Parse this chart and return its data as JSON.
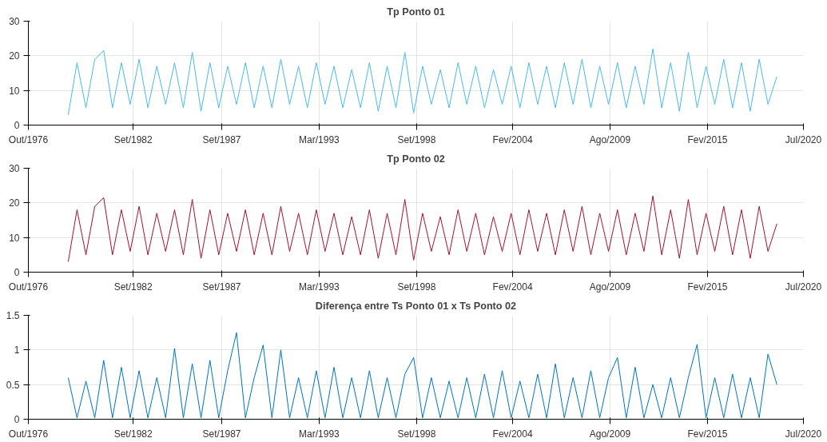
{
  "chart_data": [
    {
      "type": "line",
      "title": "Tp Ponto 01",
      "x": [
        "1979-01",
        "1979-07",
        "1980-01",
        "1980-07",
        "1981-01",
        "1981-07",
        "1982-01",
        "1982-07",
        "1983-01",
        "1983-07",
        "1984-01",
        "1984-07",
        "1985-01",
        "1985-07",
        "1986-01",
        "1986-07",
        "1987-01",
        "1987-07",
        "1988-01",
        "1988-07",
        "1989-01",
        "1989-07",
        "1990-01",
        "1990-07",
        "1991-01",
        "1991-07",
        "1992-01",
        "1992-07",
        "1993-01",
        "1993-07",
        "1994-01",
        "1994-07",
        "1995-01",
        "1995-07",
        "1996-01",
        "1996-07",
        "1997-01",
        "1997-07",
        "1998-01",
        "1998-07",
        "1999-01",
        "1999-07",
        "2000-01",
        "2000-07",
        "2001-01",
        "2001-07",
        "2002-01",
        "2002-07",
        "2003-01",
        "2003-07",
        "2004-01",
        "2004-07",
        "2005-01",
        "2005-07",
        "2006-01",
        "2006-07",
        "2007-01",
        "2007-07",
        "2008-01",
        "2008-07",
        "2009-01",
        "2009-07",
        "2010-01",
        "2010-07",
        "2011-01",
        "2011-07",
        "2012-01",
        "2012-07",
        "2013-01",
        "2013-07",
        "2014-01",
        "2014-07",
        "2015-01",
        "2015-07",
        "2016-01",
        "2016-07",
        "2017-01",
        "2017-07",
        "2018-01",
        "2018-07",
        "2019-01"
      ],
      "series": [
        {
          "color": "#4db8e8",
          "values": [
            3,
            18,
            5,
            19,
            21.5,
            5,
            18,
            6,
            19,
            5,
            17,
            6,
            18,
            5,
            21,
            4,
            18,
            5,
            17,
            6,
            18,
            5,
            17,
            5,
            19,
            6,
            17,
            5,
            18,
            6,
            17,
            5,
            16,
            5,
            18,
            4,
            17,
            5,
            21,
            3.5,
            17,
            6,
            16,
            5,
            18,
            6,
            17,
            5,
            16,
            6,
            17,
            5,
            18,
            6,
            17,
            5,
            18,
            6,
            19,
            5,
            17,
            6,
            18,
            5,
            17,
            6,
            22,
            5,
            18,
            4,
            21,
            5,
            17,
            6,
            19,
            5,
            18,
            4,
            19,
            6,
            14
          ]
        }
      ],
      "xlim": [
        "1976-10",
        "2020-07"
      ],
      "ylim": [
        0,
        30
      ],
      "yticks": [
        0,
        10,
        20,
        30
      ],
      "xticks": [
        {
          "value": "1976-10",
          "label": "Out/1976"
        },
        {
          "value": "1982-09",
          "label": "Set/1982"
        },
        {
          "value": "1987-09",
          "label": "Set/1987"
        },
        {
          "value": "1993-03",
          "label": "Mar/1993"
        },
        {
          "value": "1998-09",
          "label": "Set/1998"
        },
        {
          "value": "2004-02",
          "label": "Fev/2004"
        },
        {
          "value": "2009-08",
          "label": "Ago/2009"
        },
        {
          "value": "2015-02",
          "label": "Fev/2015"
        },
        {
          "value": "2020-07",
          "label": "Jul/2020"
        }
      ],
      "grid": true
    },
    {
      "type": "line",
      "title": "Tp Ponto 02",
      "x": [
        "1979-01",
        "1979-07",
        "1980-01",
        "1980-07",
        "1981-01",
        "1981-07",
        "1982-01",
        "1982-07",
        "1983-01",
        "1983-07",
        "1984-01",
        "1984-07",
        "1985-01",
        "1985-07",
        "1986-01",
        "1986-07",
        "1987-01",
        "1987-07",
        "1988-01",
        "1988-07",
        "1989-01",
        "1989-07",
        "1990-01",
        "1990-07",
        "1991-01",
        "1991-07",
        "1992-01",
        "1992-07",
        "1993-01",
        "1993-07",
        "1994-01",
        "1994-07",
        "1995-01",
        "1995-07",
        "1996-01",
        "1996-07",
        "1997-01",
        "1997-07",
        "1998-01",
        "1998-07",
        "1999-01",
        "1999-07",
        "2000-01",
        "2000-07",
        "2001-01",
        "2001-07",
        "2002-01",
        "2002-07",
        "2003-01",
        "2003-07",
        "2004-01",
        "2004-07",
        "2005-01",
        "2005-07",
        "2006-01",
        "2006-07",
        "2007-01",
        "2007-07",
        "2008-01",
        "2008-07",
        "2009-01",
        "2009-07",
        "2010-01",
        "2010-07",
        "2011-01",
        "2011-07",
        "2012-01",
        "2012-07",
        "2013-01",
        "2013-07",
        "2014-01",
        "2014-07",
        "2015-01",
        "2015-07",
        "2016-01",
        "2016-07",
        "2017-01",
        "2017-07",
        "2018-01",
        "2018-07",
        "2019-01"
      ],
      "series": [
        {
          "color": "#a0122e",
          "values": [
            3,
            18,
            5,
            19,
            21.5,
            5,
            18,
            6,
            19,
            5,
            17,
            6,
            18,
            5,
            21,
            4,
            18,
            5,
            17,
            6,
            18,
            5,
            17,
            5,
            19,
            6,
            17,
            5,
            18,
            6,
            17,
            5,
            16,
            5,
            18,
            4,
            17,
            5,
            21,
            3.5,
            17,
            6,
            16,
            5,
            18,
            6,
            17,
            5,
            16,
            6,
            17,
            5,
            18,
            6,
            17,
            5,
            18,
            6,
            19,
            5,
            17,
            6,
            18,
            5,
            17,
            6,
            22,
            5,
            18,
            4,
            21,
            5,
            17,
            6,
            19,
            5,
            18,
            4,
            19,
            6,
            14
          ]
        }
      ],
      "xlim": [
        "1976-10",
        "2020-07"
      ],
      "ylim": [
        0,
        30
      ],
      "yticks": [
        0,
        10,
        20,
        30
      ],
      "xticks": [
        {
          "value": "1976-10",
          "label": "Out/1976"
        },
        {
          "value": "1982-09",
          "label": "Set/1982"
        },
        {
          "value": "1987-09",
          "label": "Set/1987"
        },
        {
          "value": "1993-03",
          "label": "Mar/1993"
        },
        {
          "value": "1998-09",
          "label": "Set/1998"
        },
        {
          "value": "2004-02",
          "label": "Fev/2004"
        },
        {
          "value": "2009-08",
          "label": "Ago/2009"
        },
        {
          "value": "2015-02",
          "label": "Fev/2015"
        },
        {
          "value": "2020-07",
          "label": "Jul/2020"
        }
      ],
      "grid": true
    },
    {
      "type": "line",
      "title": "Diferença entre Ts Ponto 01 x Ts Ponto 02",
      "x": [
        "1979-01",
        "1979-07",
        "1980-01",
        "1980-07",
        "1981-01",
        "1981-07",
        "1982-01",
        "1982-07",
        "1983-01",
        "1983-07",
        "1984-01",
        "1984-07",
        "1985-01",
        "1985-07",
        "1986-01",
        "1986-07",
        "1987-01",
        "1987-07",
        "1988-01",
        "1988-07",
        "1989-01",
        "1989-07",
        "1990-01",
        "1990-07",
        "1991-01",
        "1991-07",
        "1992-01",
        "1992-07",
        "1993-01",
        "1993-07",
        "1994-01",
        "1994-07",
        "1995-01",
        "1995-07",
        "1996-01",
        "1996-07",
        "1997-01",
        "1997-07",
        "1998-01",
        "1998-07",
        "1999-01",
        "1999-07",
        "2000-01",
        "2000-07",
        "2001-01",
        "2001-07",
        "2002-01",
        "2002-07",
        "2003-01",
        "2003-07",
        "2004-01",
        "2004-07",
        "2005-01",
        "2005-07",
        "2006-01",
        "2006-07",
        "2007-01",
        "2007-07",
        "2008-01",
        "2008-07",
        "2009-01",
        "2009-07",
        "2010-01",
        "2010-07",
        "2011-01",
        "2011-07",
        "2012-01",
        "2012-07",
        "2013-01",
        "2013-07",
        "2014-01",
        "2014-07",
        "2015-01",
        "2015-07",
        "2016-01",
        "2016-07",
        "2017-01",
        "2017-07",
        "2018-01",
        "2018-07",
        "2019-01"
      ],
      "series": [
        {
          "color": "#0072bd",
          "values": [
            0.6,
            0.02,
            0.55,
            0.02,
            0.85,
            0.02,
            0.75,
            0.02,
            0.7,
            0.02,
            0.6,
            0.02,
            1.02,
            0.02,
            0.8,
            0.02,
            0.85,
            0.02,
            0.7,
            1.25,
            0.02,
            0.6,
            1.07,
            0.02,
            1.0,
            0.02,
            0.6,
            0.02,
            0.7,
            0.02,
            0.75,
            0.02,
            0.6,
            0.02,
            0.7,
            0.02,
            0.6,
            0.02,
            0.65,
            0.89,
            0.02,
            0.6,
            0.02,
            0.55,
            0.02,
            0.6,
            0.02,
            0.65,
            0.02,
            0.7,
            0.02,
            0.55,
            0.02,
            0.65,
            0.02,
            0.8,
            0.02,
            0.6,
            0.02,
            0.7,
            0.02,
            0.6,
            0.89,
            0.02,
            0.75,
            0.02,
            0.5,
            0.02,
            0.6,
            0.02,
            0.6,
            1.08,
            0.02,
            0.6,
            0.02,
            0.65,
            0.02,
            0.6,
            0.02,
            0.94,
            0.5
          ]
        }
      ],
      "xlim": [
        "1976-10",
        "2020-07"
      ],
      "ylim": [
        0,
        1.5
      ],
      "yticks": [
        0,
        0.5,
        1,
        1.5
      ],
      "xticks": [
        {
          "value": "1976-10",
          "label": "Out/1976"
        },
        {
          "value": "1982-09",
          "label": "Set/1982"
        },
        {
          "value": "1987-09",
          "label": "Set/1987"
        },
        {
          "value": "1993-03",
          "label": "Mar/1993"
        },
        {
          "value": "1998-09",
          "label": "Set/1998"
        },
        {
          "value": "2004-02",
          "label": "Fev/2004"
        },
        {
          "value": "2009-08",
          "label": "Ago/2009"
        },
        {
          "value": "2015-02",
          "label": "Fev/2015"
        },
        {
          "value": "2020-07",
          "label": "Jul/2020"
        }
      ],
      "grid": true
    }
  ]
}
